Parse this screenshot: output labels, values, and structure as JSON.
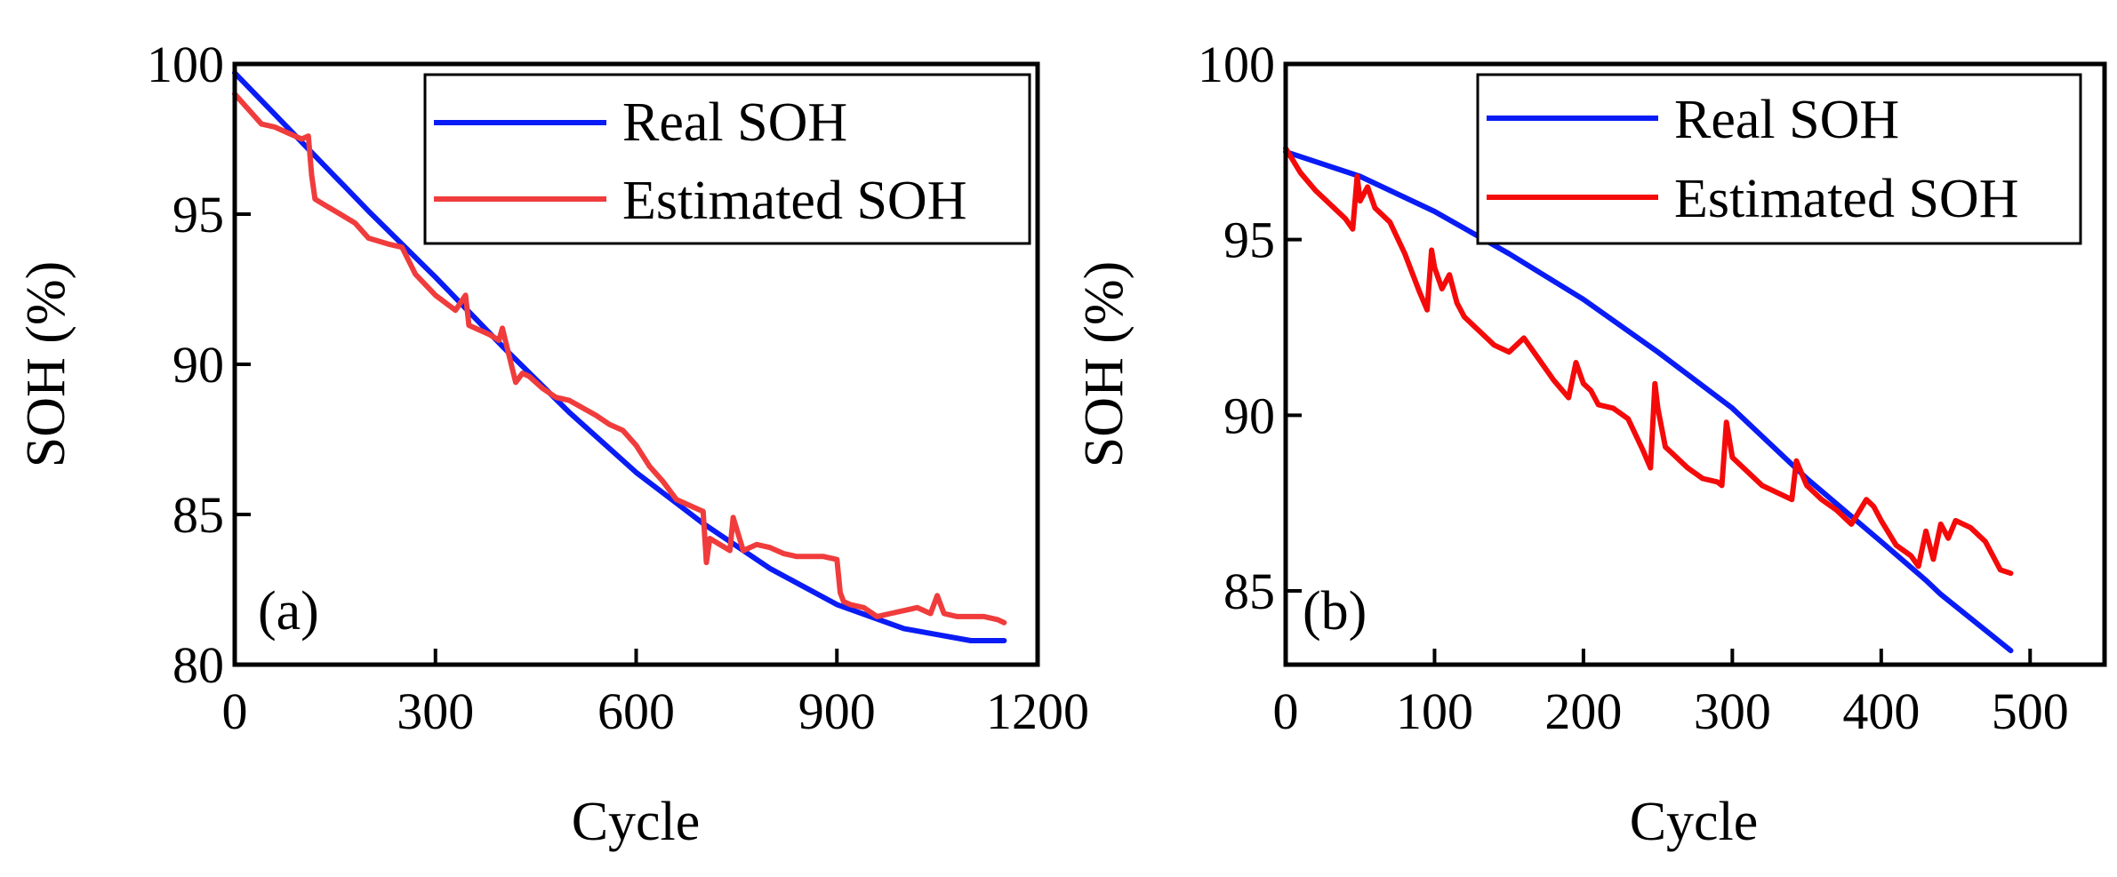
{
  "chart_data": [
    {
      "type": "line",
      "panel_label": "(a)",
      "xlabel": "Cycle",
      "ylabel": "SOH (%)",
      "xlim": [
        0,
        1200
      ],
      "ylim": [
        80,
        100
      ],
      "xticks": [
        0,
        300,
        600,
        900,
        1200
      ],
      "yticks": [
        80,
        85,
        90,
        95,
        100
      ],
      "legend_position": "top-right",
      "colors": {
        "real": "#0a1cf5",
        "estimated": "#f03c3c"
      },
      "series": [
        {
          "name": "Real SOH",
          "x": [
            0,
            100,
            200,
            300,
            400,
            500,
            600,
            700,
            800,
            900,
            1000,
            1050,
            1100,
            1150
          ],
          "y": [
            99.7,
            97.4,
            95.1,
            92.9,
            90.6,
            88.4,
            86.4,
            84.7,
            83.2,
            82.0,
            81.2,
            81.0,
            80.8,
            80.8
          ]
        },
        {
          "name": "Estimated SOH",
          "x": [
            0,
            20,
            40,
            60,
            80,
            100,
            110,
            115,
            120,
            135,
            150,
            180,
            200,
            230,
            250,
            270,
            300,
            330,
            345,
            350,
            380,
            395,
            400,
            420,
            430,
            440,
            460,
            480,
            500,
            540,
            560,
            580,
            600,
            620,
            640,
            660,
            680,
            700,
            705,
            710,
            740,
            745,
            760,
            780,
            800,
            820,
            840,
            860,
            880,
            900,
            905,
            910,
            920,
            940,
            960,
            980,
            1000,
            1020,
            1040,
            1050,
            1060,
            1080,
            1100,
            1120,
            1140,
            1150
          ],
          "y": [
            99.0,
            98.5,
            98.0,
            97.9,
            97.7,
            97.5,
            97.6,
            96.3,
            95.5,
            95.3,
            95.1,
            94.7,
            94.2,
            94.0,
            93.9,
            93.0,
            92.3,
            91.8,
            92.3,
            91.3,
            91.0,
            90.8,
            91.2,
            89.4,
            89.7,
            89.6,
            89.2,
            88.9,
            88.8,
            88.3,
            88.0,
            87.8,
            87.3,
            86.6,
            86.1,
            85.5,
            85.3,
            85.1,
            83.4,
            84.2,
            83.8,
            84.9,
            83.8,
            84.0,
            83.9,
            83.7,
            83.6,
            83.6,
            83.6,
            83.5,
            82.4,
            82.1,
            82.0,
            81.9,
            81.6,
            81.7,
            81.8,
            81.9,
            81.7,
            82.3,
            81.7,
            81.6,
            81.6,
            81.6,
            81.5,
            81.4
          ]
        }
      ]
    },
    {
      "type": "line",
      "panel_label": "(b)",
      "xlabel": "Cycle",
      "ylabel": "SOH (%)",
      "xlim": [
        0,
        550
      ],
      "ylim": [
        82.9,
        100
      ],
      "xticks": [
        0,
        100,
        200,
        300,
        400,
        500
      ],
      "yticks": [
        85,
        90,
        95,
        100
      ],
      "legend_position": "top-right",
      "colors": {
        "real": "#0a1cf5",
        "estimated": "#f50a0a"
      },
      "series": [
        {
          "name": "Real SOH",
          "x": [
            0,
            50,
            100,
            150,
            200,
            250,
            300,
            350,
            400,
            430,
            440,
            487
          ],
          "y": [
            97.5,
            96.8,
            95.8,
            94.6,
            93.3,
            91.8,
            90.2,
            88.2,
            86.4,
            85.3,
            84.9,
            83.3
          ]
        },
        {
          "name": "Estimated SOH",
          "x": [
            0,
            10,
            20,
            30,
            40,
            45,
            48,
            50,
            55,
            60,
            70,
            80,
            90,
            95,
            98,
            100,
            105,
            110,
            115,
            120,
            130,
            140,
            150,
            160,
            170,
            180,
            190,
            195,
            200,
            205,
            210,
            220,
            230,
            240,
            245,
            248,
            250,
            255,
            260,
            270,
            280,
            290,
            293,
            296,
            300,
            310,
            320,
            330,
            340,
            343,
            350,
            360,
            370,
            380,
            390,
            395,
            400,
            410,
            420,
            425,
            430,
            435,
            440,
            445,
            450,
            460,
            470,
            480,
            487
          ],
          "y": [
            97.6,
            96.9,
            96.4,
            96.0,
            95.6,
            95.3,
            96.8,
            96.1,
            96.5,
            95.9,
            95.5,
            94.6,
            93.5,
            93.0,
            94.7,
            94.2,
            93.6,
            94.0,
            93.2,
            92.8,
            92.4,
            92.0,
            91.8,
            92.2,
            91.6,
            91.0,
            90.5,
            91.5,
            90.9,
            90.7,
            90.3,
            90.2,
            89.9,
            89.0,
            88.5,
            90.9,
            90.2,
            89.1,
            88.9,
            88.5,
            88.2,
            88.1,
            88.0,
            89.8,
            88.8,
            88.4,
            88.0,
            87.8,
            87.6,
            88.7,
            88.0,
            87.6,
            87.3,
            86.9,
            87.6,
            87.4,
            87.0,
            86.3,
            86.0,
            85.7,
            86.7,
            85.9,
            86.9,
            86.5,
            87.0,
            86.8,
            86.4,
            85.6,
            85.5
          ]
        }
      ]
    }
  ]
}
